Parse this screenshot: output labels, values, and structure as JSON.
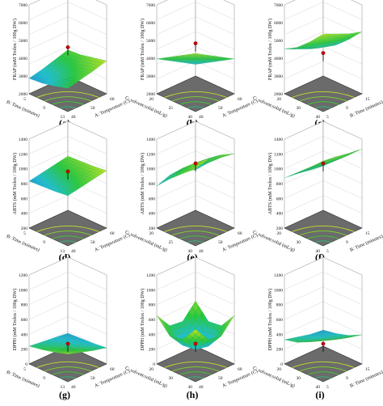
{
  "chart_data": [
    {
      "id": "a",
      "type": "surface",
      "label": "(a)",
      "zlabel": "FRAP (mM Trolox / 100g DW)",
      "zticks": [
        "2000",
        "3000",
        "4000",
        "5000",
        "6000",
        "7000"
      ],
      "zlim": [
        2000,
        7000
      ],
      "xlabel": "A: Temperature (C)",
      "xticks": [
        "40",
        "50",
        "60"
      ],
      "ylabel": "B: Time (minutes)",
      "yticks": [
        "5",
        "9",
        "13"
      ],
      "surface": [
        [
          3200,
          3350,
          3500,
          3700
        ],
        [
          3000,
          3150,
          3350,
          3550
        ],
        [
          2850,
          3000,
          3200,
          3400
        ],
        [
          2800,
          2950,
          3150,
          3350
        ]
      ],
      "peak_z": 4400
    },
    {
      "id": "b",
      "type": "surface",
      "label": "(b)",
      "zlabel": "FRAP (mM Trolox / 100g DW)",
      "zticks": [
        "2000",
        "3000",
        "4000",
        "5000",
        "6000",
        "7000"
      ],
      "zlim": [
        2000,
        7000
      ],
      "xlabel": "A: Temperature (C)",
      "xticks": [
        "40",
        "50",
        "60"
      ],
      "ylabel": "C: solvent:solid (mL/g)",
      "yticks": [
        "20",
        "25",
        "40"
      ],
      "surface": [
        [
          5000,
          4600,
          4200,
          3800
        ],
        [
          4600,
          4200,
          3800,
          3400
        ],
        [
          4200,
          3800,
          3400,
          3000
        ],
        [
          3800,
          3400,
          3000,
          2600
        ]
      ],
      "peak_z": 4600
    },
    {
      "id": "c",
      "type": "surface",
      "label": "(c)",
      "zlabel": "FRAP (mM Trolox / 100g DW)",
      "zticks": [
        "2000",
        "3000",
        "4000",
        "5000",
        "6000",
        "7000"
      ],
      "zlim": [
        2000,
        7000
      ],
      "xlabel": "B: Time (minutes)",
      "xticks": [
        "5",
        "9",
        "15"
      ],
      "ylabel": "C: solvent:solid (mL/g)",
      "yticks": [
        "20",
        "30",
        "40"
      ],
      "surface": [
        [
          6000,
          5700,
          5400,
          5200
        ],
        [
          5300,
          5000,
          4700,
          4500
        ],
        [
          4700,
          4400,
          4100,
          3900
        ],
        [
          4300,
          4000,
          3700,
          3500
        ]
      ],
      "peak_z": 4100
    },
    {
      "id": "d",
      "type": "surface",
      "label": "(d)",
      "zlabel": "ABTS (mM Trolox / 100g DW)",
      "zticks": [
        "200",
        "400",
        "600",
        "800",
        "1000",
        "1200",
        "1400"
      ],
      "zlim": [
        200,
        1400
      ],
      "xlabel": "A: Temperature (C)",
      "xticks": [
        "40",
        "50",
        "60"
      ],
      "ylabel": "B: Time (minutes)",
      "yticks": [
        "5",
        "9",
        "13"
      ],
      "surface": [
        [
          820,
          850,
          880,
          910
        ],
        [
          800,
          830,
          860,
          890
        ],
        [
          790,
          820,
          850,
          880
        ],
        [
          780,
          810,
          840,
          870
        ]
      ],
      "peak_z": 900
    },
    {
      "id": "e",
      "type": "surface",
      "label": "(e)",
      "zlabel": "ABTS (mM Trolox / 100g DW)",
      "zticks": [
        "200",
        "400",
        "600",
        "800",
        "1000",
        "1200",
        "1400"
      ],
      "zlim": [
        200,
        1400
      ],
      "xlabel": "A: Temperature (C)",
      "xticks": [
        "40",
        "50",
        "60"
      ],
      "ylabel": "C: solvent:solid (mL/g)",
      "yticks": [
        "20",
        "25",
        "40"
      ],
      "surface": [
        [
          1150,
          1200,
          1180,
          1120
        ],
        [
          1020,
          1080,
          1060,
          1000
        ],
        [
          880,
          940,
          920,
          860
        ],
        [
          720,
          780,
          760,
          700
        ]
      ],
      "peak_z": 1000
    },
    {
      "id": "f",
      "type": "surface",
      "label": "(f)",
      "zlabel": "ABTS (mM Trolox / 100g DW)",
      "zticks": [
        "200",
        "400",
        "600",
        "800",
        "1000",
        "1200",
        "1400"
      ],
      "zlim": [
        200,
        1400
      ],
      "xlabel": "B: Time (minutes)",
      "xticks": [
        "5",
        "9",
        "15"
      ],
      "ylabel": "C: solvent:solid (mL/g)",
      "yticks": [
        "20",
        "30",
        "40"
      ],
      "surface": [
        [
          1250,
          1230,
          1200,
          1180
        ],
        [
          1100,
          1080,
          1050,
          1030
        ],
        [
          960,
          940,
          910,
          890
        ],
        [
          820,
          800,
          770,
          750
        ]
      ],
      "peak_z": 1000
    },
    {
      "id": "g",
      "type": "surface",
      "label": "(g)",
      "zlabel": "DPPH (mM Trolox / 100g DW)",
      "zticks": [
        "0",
        "200",
        "400",
        "600",
        "800",
        "1000",
        "1200"
      ],
      "zlim": [
        0,
        1200
      ],
      "xlabel": "A: Temperature (C)",
      "xticks": [
        "40",
        "50",
        "60"
      ],
      "ylabel": "B: Time (minutes)",
      "yticks": [
        "5",
        "9",
        "13"
      ],
      "surface": [
        [
          340,
          290,
          240,
          200
        ],
        [
          290,
          250,
          210,
          180
        ],
        [
          250,
          220,
          190,
          170
        ],
        [
          220,
          200,
          180,
          160
        ]
      ],
      "peak_z": 250
    },
    {
      "id": "h",
      "type": "surface",
      "label": "(h)",
      "zlabel": "DPPH (mM Trolox / 100g DW)",
      "zticks": [
        "0",
        "200",
        "400",
        "600",
        "800",
        "1000",
        "1200"
      ],
      "zlim": [
        0,
        1200
      ],
      "xlabel": "A: Temperature (C)",
      "xticks": [
        "40",
        "50",
        "60"
      ],
      "ylabel": "C: solvent:solid (mL/g)",
      "yticks": [
        "20",
        "30",
        "40"
      ],
      "surface": [
        [
          650,
          450,
          420,
          600
        ],
        [
          450,
          250,
          220,
          400
        ],
        [
          420,
          230,
          200,
          380
        ],
        [
          600,
          400,
          380,
          560
        ]
      ],
      "peak_z": 250
    },
    {
      "id": "i",
      "type": "surface",
      "label": "(i)",
      "zlabel": "DPPH (mM Trolox / 100g DW)",
      "zticks": [
        "0",
        "200",
        "400",
        "600",
        "800",
        "1000",
        "1200"
      ],
      "zlim": [
        0,
        1200
      ],
      "xlabel": "B: Time (minutes)",
      "xticks": [
        "5",
        "9",
        "15"
      ],
      "ylabel": "C: solvent:solid (mL/g)",
      "yticks": [
        "20",
        "30",
        "40"
      ],
      "surface": [
        [
          520,
          450,
          400,
          360
        ],
        [
          420,
          360,
          310,
          280
        ],
        [
          340,
          290,
          250,
          230
        ],
        [
          300,
          260,
          220,
          200
        ]
      ],
      "peak_z": 250
    }
  ]
}
